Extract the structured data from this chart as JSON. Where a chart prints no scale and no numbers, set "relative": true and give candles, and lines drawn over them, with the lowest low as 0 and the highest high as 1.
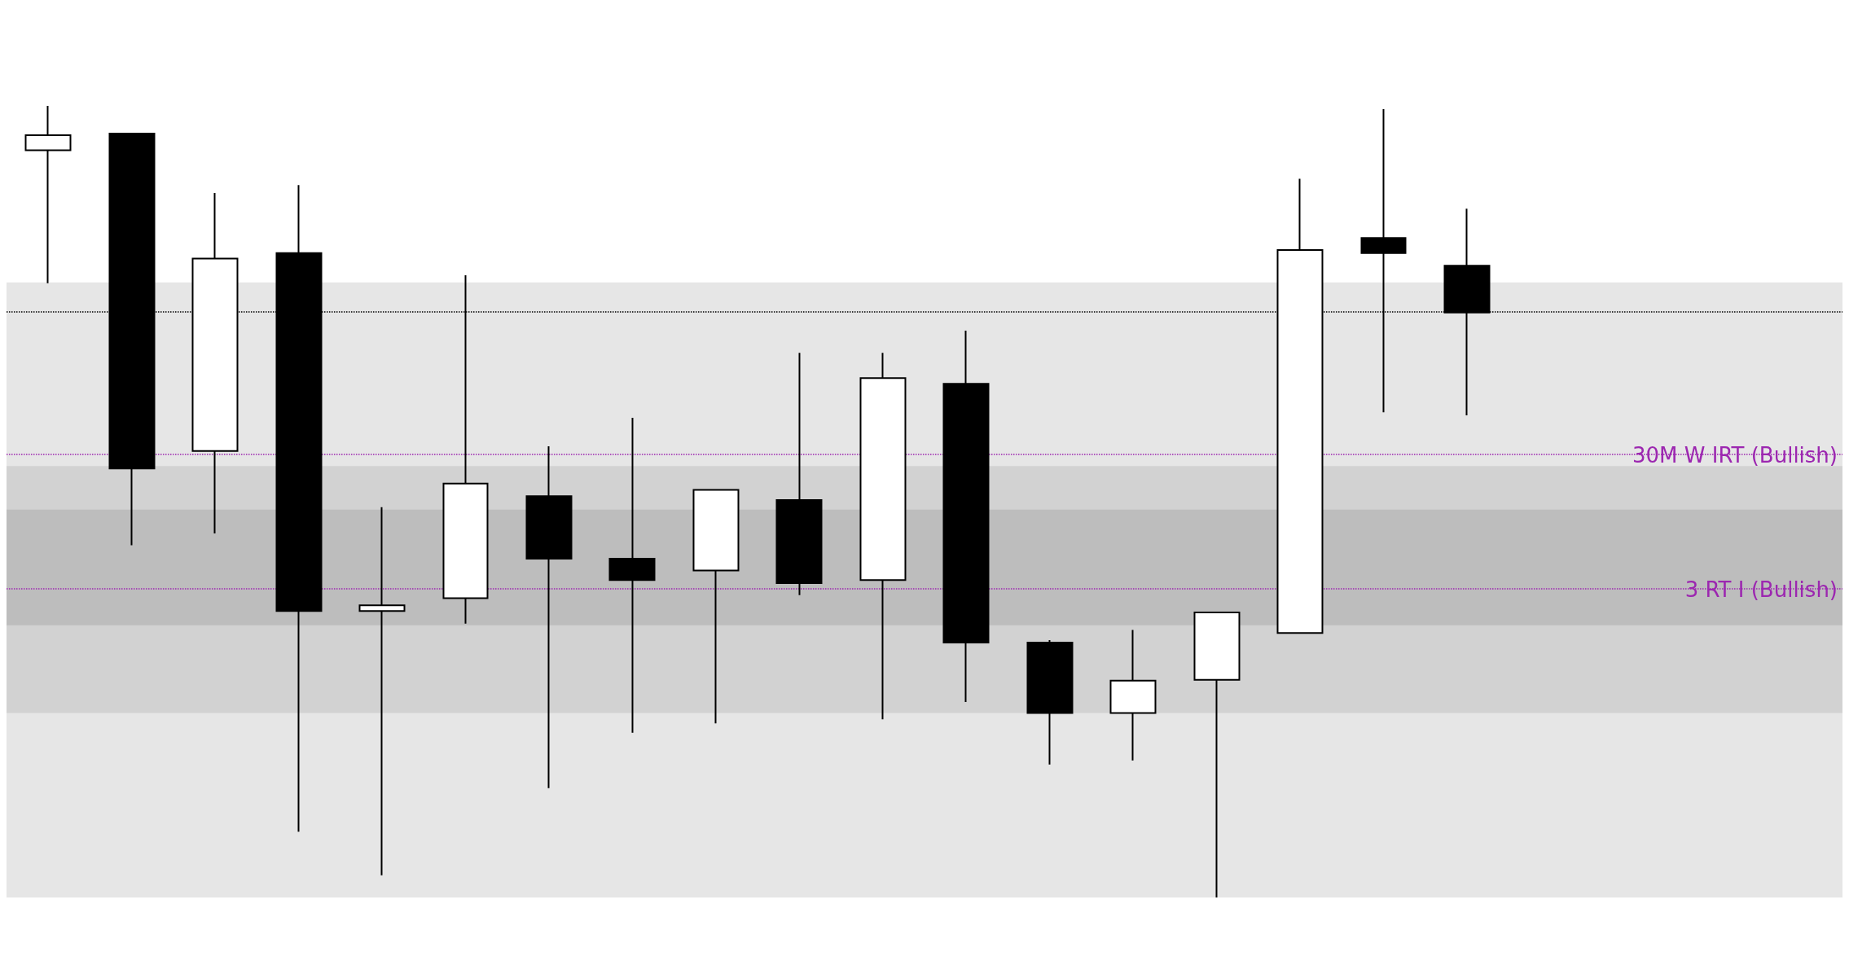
{
  "chart_data": {
    "type": "candlestick",
    "categories": [
      null,
      null,
      null,
      null,
      null,
      null,
      null,
      null,
      null,
      null,
      null,
      null,
      null,
      null,
      null,
      null,
      null,
      null
    ],
    "ohlc": [
      [
        0.944,
        1.0,
        0.776,
        0.963
      ],
      [
        0.965,
        0.965,
        0.445,
        0.542
      ],
      [
        0.564,
        0.89,
        0.46,
        0.807
      ],
      [
        0.814,
        0.9,
        0.083,
        0.362
      ],
      [
        0.362,
        0.493,
        0.028,
        0.369
      ],
      [
        0.378,
        0.786,
        0.346,
        0.523
      ],
      [
        0.507,
        0.57,
        0.138,
        0.428
      ],
      [
        0.428,
        0.606,
        0.208,
        0.401
      ],
      [
        0.413,
        0.515,
        0.22,
        0.515
      ],
      [
        0.502,
        0.688,
        0.382,
        0.397
      ],
      [
        0.401,
        0.688,
        0.225,
        0.656
      ],
      [
        0.649,
        0.716,
        0.247,
        0.322
      ],
      [
        0.322,
        0.325,
        0.168,
        0.233
      ],
      [
        0.233,
        0.338,
        0.173,
        0.274
      ],
      [
        0.275,
        0.36,
        0.0,
        0.36
      ],
      [
        0.334,
        0.908,
        0.334,
        0.818
      ],
      [
        0.833,
        0.996,
        0.613,
        0.814
      ],
      [
        0.798,
        0.87,
        0.609,
        0.739
      ]
    ],
    "ref_lines": [
      {
        "axis": "y",
        "value": 0.739,
        "label": null,
        "color": "#000000",
        "line_style": "dotted"
      },
      {
        "axis": "y",
        "value": 0.561,
        "label": "30M W IRT (Bullish)",
        "color": "#9c27b0",
        "line_style": "dotted"
      },
      {
        "axis": "y",
        "value": 0.391,
        "label": "3 RT I (Bullish)",
        "color": "#9c27b0",
        "line_style": "dotted"
      }
    ],
    "bands": [
      {
        "axis": "y",
        "from": 0,
        "to": 0.49,
        "label": null,
        "color": "#e6e6e6"
      },
      {
        "axis": "y",
        "from": 0.233,
        "to": 0.777,
        "label": null,
        "color": "#e6e6e6"
      },
      {
        "axis": "y",
        "from": 0.233,
        "to": 0.545,
        "label": null,
        "color": "#d2d2d2"
      },
      {
        "axis": "y",
        "from": 0.344,
        "to": 0.49,
        "label": null,
        "color": "#bdbdbd"
      }
    ],
    "relative": true
  }
}
